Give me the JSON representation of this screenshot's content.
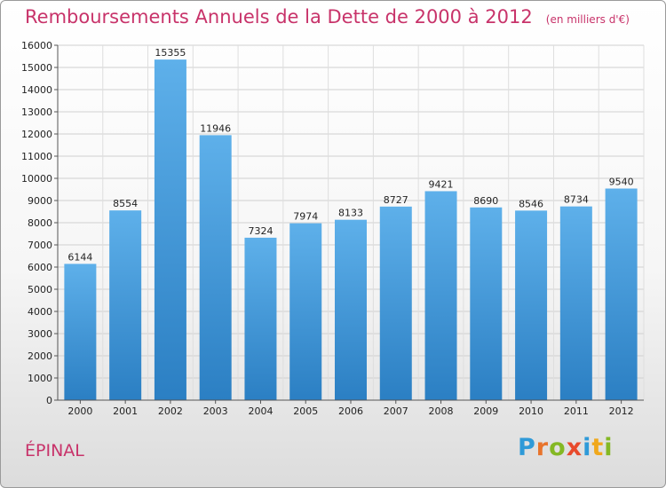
{
  "chart_data": {
    "type": "bar",
    "title": "Remboursements Annuels de la Dette de 2000 à 2012",
    "unit_note": "(en milliers d'€)",
    "categories": [
      "2000",
      "2001",
      "2002",
      "2003",
      "2004",
      "2005",
      "2006",
      "2007",
      "2008",
      "2009",
      "2010",
      "2011",
      "2012"
    ],
    "values": [
      6144,
      8554,
      15355,
      11946,
      7324,
      7974,
      8133,
      8727,
      9421,
      8690,
      8546,
      8734,
      9540
    ],
    "ylim": [
      0,
      16000
    ],
    "yticks": [
      0,
      1000,
      2000,
      3000,
      4000,
      5000,
      6000,
      7000,
      8000,
      9000,
      10000,
      11000,
      12000,
      13000,
      14000,
      15000,
      16000
    ],
    "grid": true,
    "bar_color": "#3a94d6"
  },
  "place": "ÉPINAL",
  "brand": {
    "letters": [
      {
        "char": "P",
        "color": "#2f9ad8"
      },
      {
        "char": "r",
        "color": "#e8742c"
      },
      {
        "char": "o",
        "color": "#84b824"
      },
      {
        "char": "x",
        "color": "#e84a2c"
      },
      {
        "char": "i",
        "color": "#2f9ad8"
      },
      {
        "char": "t",
        "color": "#f0a81c"
      },
      {
        "char": "i",
        "color": "#84b824"
      }
    ]
  }
}
